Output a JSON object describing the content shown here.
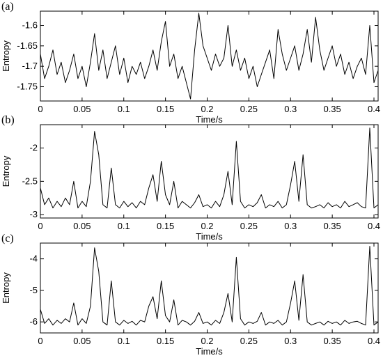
{
  "chart_data": [
    {
      "type": "line",
      "panel_label": "(a)",
      "xlabel": "Time/s",
      "ylabel": "Entropy",
      "xlim": [
        0,
        0.405
      ],
      "ylim": [
        -1.785,
        -1.565
      ],
      "xticks": [
        0,
        0.05,
        0.1,
        0.15,
        0.2,
        0.25,
        0.3,
        0.35,
        0.4
      ],
      "xtick_labels": [
        "0",
        "0.05",
        "0.1",
        "0.15",
        "0.2",
        "0.25",
        "0.3",
        "0.35",
        "0.4"
      ],
      "yticks": [
        -1.75,
        -1.7,
        -1.65,
        -1.6
      ],
      "ytick_labels": [
        "-1.75",
        "-1.7",
        "-1.65",
        "-1.6"
      ],
      "grid": false,
      "series": [
        {
          "color": "#000000",
          "x": [
            0,
            0.005,
            0.01,
            0.015,
            0.02,
            0.025,
            0.03,
            0.035,
            0.04,
            0.045,
            0.05,
            0.055,
            0.06,
            0.065,
            0.07,
            0.075,
            0.08,
            0.085,
            0.09,
            0.095,
            0.1,
            0.105,
            0.11,
            0.115,
            0.12,
            0.125,
            0.13,
            0.135,
            0.14,
            0.145,
            0.15,
            0.155,
            0.16,
            0.165,
            0.17,
            0.175,
            0.18,
            0.185,
            0.19,
            0.195,
            0.2,
            0.205,
            0.21,
            0.215,
            0.22,
            0.225,
            0.23,
            0.235,
            0.24,
            0.245,
            0.25,
            0.255,
            0.26,
            0.265,
            0.27,
            0.275,
            0.28,
            0.285,
            0.29,
            0.295,
            0.3,
            0.305,
            0.31,
            0.315,
            0.32,
            0.325,
            0.33,
            0.335,
            0.34,
            0.345,
            0.35,
            0.355,
            0.36,
            0.365,
            0.37,
            0.375,
            0.38,
            0.385,
            0.39,
            0.395,
            0.4,
            0.405
          ],
          "y": [
            -1.67,
            -1.73,
            -1.7,
            -1.66,
            -1.72,
            -1.69,
            -1.74,
            -1.71,
            -1.67,
            -1.73,
            -1.7,
            -1.75,
            -1.69,
            -1.62,
            -1.71,
            -1.66,
            -1.73,
            -1.69,
            -1.65,
            -1.72,
            -1.68,
            -1.74,
            -1.7,
            -1.72,
            -1.69,
            -1.73,
            -1.7,
            -1.66,
            -1.71,
            -1.64,
            -1.59,
            -1.7,
            -1.67,
            -1.73,
            -1.7,
            -1.74,
            -1.78,
            -1.66,
            -1.57,
            -1.65,
            -1.68,
            -1.71,
            -1.67,
            -1.7,
            -1.68,
            -1.6,
            -1.7,
            -1.66,
            -1.71,
            -1.68,
            -1.73,
            -1.7,
            -1.75,
            -1.72,
            -1.69,
            -1.66,
            -1.73,
            -1.61,
            -1.67,
            -1.71,
            -1.68,
            -1.65,
            -1.71,
            -1.67,
            -1.61,
            -1.69,
            -1.58,
            -1.66,
            -1.71,
            -1.68,
            -1.65,
            -1.7,
            -1.67,
            -1.72,
            -1.69,
            -1.73,
            -1.7,
            -1.68,
            -1.72,
            -1.6,
            -1.74,
            -1.71
          ]
        }
      ]
    },
    {
      "type": "line",
      "panel_label": "(b)",
      "xlabel": "Time/s",
      "ylabel": "Entropy",
      "xlim": [
        0,
        0.405
      ],
      "ylim": [
        -3.05,
        -1.65
      ],
      "xticks": [
        0,
        0.05,
        0.1,
        0.15,
        0.2,
        0.25,
        0.3,
        0.35,
        0.4
      ],
      "xtick_labels": [
        "0",
        "0.05",
        "0.1",
        "0.15",
        "0.2",
        "0.25",
        "0.3",
        "0.35",
        "0.4"
      ],
      "yticks": [
        -3,
        -2.5,
        -2
      ],
      "ytick_labels": [
        "-3",
        "-2.5",
        "-2"
      ],
      "grid": false,
      "series": [
        {
          "color": "#000000",
          "x": [
            0,
            0.005,
            0.01,
            0.015,
            0.02,
            0.025,
            0.03,
            0.035,
            0.04,
            0.045,
            0.05,
            0.055,
            0.06,
            0.065,
            0.07,
            0.075,
            0.08,
            0.085,
            0.09,
            0.095,
            0.1,
            0.105,
            0.11,
            0.115,
            0.12,
            0.125,
            0.13,
            0.135,
            0.14,
            0.145,
            0.15,
            0.155,
            0.16,
            0.165,
            0.17,
            0.175,
            0.18,
            0.185,
            0.19,
            0.195,
            0.2,
            0.205,
            0.21,
            0.215,
            0.22,
            0.225,
            0.23,
            0.235,
            0.24,
            0.245,
            0.25,
            0.255,
            0.26,
            0.265,
            0.27,
            0.275,
            0.28,
            0.285,
            0.29,
            0.295,
            0.3,
            0.305,
            0.31,
            0.315,
            0.32,
            0.325,
            0.33,
            0.335,
            0.34,
            0.345,
            0.35,
            0.355,
            0.36,
            0.365,
            0.37,
            0.375,
            0.38,
            0.385,
            0.39,
            0.395,
            0.4,
            0.405
          ],
          "y": [
            -2.6,
            -2.85,
            -2.75,
            -2.9,
            -2.8,
            -2.88,
            -2.75,
            -2.85,
            -2.5,
            -2.9,
            -2.8,
            -2.88,
            -2.5,
            -1.75,
            -2.1,
            -2.85,
            -2.9,
            -2.3,
            -2.85,
            -2.9,
            -2.8,
            -2.88,
            -2.82,
            -2.9,
            -2.8,
            -2.85,
            -2.6,
            -2.4,
            -2.8,
            -2.2,
            -2.7,
            -2.85,
            -2.5,
            -2.9,
            -2.8,
            -2.85,
            -2.9,
            -2.82,
            -2.7,
            -2.88,
            -2.85,
            -2.9,
            -2.8,
            -2.88,
            -2.7,
            -2.35,
            -2.85,
            -1.9,
            -2.8,
            -2.9,
            -2.85,
            -2.88,
            -2.82,
            -2.7,
            -2.9,
            -2.85,
            -2.88,
            -2.8,
            -2.9,
            -2.85,
            -2.55,
            -2.2,
            -2.8,
            -2.1,
            -2.85,
            -2.9,
            -2.88,
            -2.85,
            -2.9,
            -2.82,
            -2.88,
            -2.85,
            -2.9,
            -2.8,
            -2.88,
            -2.85,
            -2.82,
            -2.88,
            -2.9,
            -1.7,
            -2.9,
            -2.85
          ]
        }
      ]
    },
    {
      "type": "line",
      "panel_label": "(c)",
      "xlabel": "Time/s",
      "ylabel": "Entropy",
      "xlim": [
        0,
        0.405
      ],
      "ylim": [
        -6.35,
        -3.5
      ],
      "xticks": [
        0,
        0.05,
        0.1,
        0.15,
        0.2,
        0.25,
        0.3,
        0.35,
        0.4
      ],
      "xtick_labels": [
        "0",
        "0.05",
        "0.1",
        "0.15",
        "0.2",
        "0.25",
        "0.3",
        "0.35",
        "0.4"
      ],
      "yticks": [
        -6,
        -5,
        -4
      ],
      "ytick_labels": [
        "-6",
        "-5",
        "-4"
      ],
      "grid": false,
      "series": [
        {
          "color": "#000000",
          "x": [
            0,
            0.005,
            0.01,
            0.015,
            0.02,
            0.025,
            0.03,
            0.035,
            0.04,
            0.045,
            0.05,
            0.055,
            0.06,
            0.065,
            0.07,
            0.075,
            0.08,
            0.085,
            0.09,
            0.095,
            0.1,
            0.105,
            0.11,
            0.115,
            0.12,
            0.125,
            0.13,
            0.135,
            0.14,
            0.145,
            0.15,
            0.155,
            0.16,
            0.165,
            0.17,
            0.175,
            0.18,
            0.185,
            0.19,
            0.195,
            0.2,
            0.205,
            0.21,
            0.215,
            0.22,
            0.225,
            0.23,
            0.235,
            0.24,
            0.245,
            0.25,
            0.255,
            0.26,
            0.265,
            0.27,
            0.275,
            0.28,
            0.285,
            0.29,
            0.295,
            0.3,
            0.305,
            0.31,
            0.315,
            0.32,
            0.325,
            0.33,
            0.335,
            0.34,
            0.345,
            0.35,
            0.355,
            0.36,
            0.365,
            0.37,
            0.375,
            0.38,
            0.385,
            0.39,
            0.395,
            0.4,
            0.405
          ],
          "y": [
            -5.6,
            -6.05,
            -5.9,
            -6.1,
            -5.95,
            -6.05,
            -5.9,
            -6.0,
            -5.4,
            -6.1,
            -5.9,
            -6.05,
            -5.5,
            -3.65,
            -4.4,
            -6.0,
            -6.1,
            -4.7,
            -6.0,
            -6.1,
            -5.95,
            -6.05,
            -5.98,
            -6.1,
            -5.95,
            -6.0,
            -5.5,
            -5.2,
            -5.9,
            -4.7,
            -5.8,
            -6.0,
            -5.3,
            -6.1,
            -5.95,
            -6.0,
            -6.1,
            -5.98,
            -5.7,
            -6.05,
            -6.0,
            -6.1,
            -5.95,
            -6.05,
            -5.7,
            -5.1,
            -6.0,
            -3.95,
            -5.9,
            -6.1,
            -6.0,
            -6.05,
            -5.98,
            -5.7,
            -6.1,
            -6.0,
            -6.05,
            -5.95,
            -6.1,
            -6.0,
            -5.4,
            -4.7,
            -5.95,
            -4.5,
            -6.0,
            -6.1,
            -6.05,
            -6.0,
            -6.1,
            -5.98,
            -6.05,
            -6.0,
            -6.1,
            -5.95,
            -6.05,
            -6.0,
            -5.98,
            -6.05,
            -6.1,
            -3.6,
            -6.1,
            -6.0
          ]
        }
      ]
    }
  ]
}
